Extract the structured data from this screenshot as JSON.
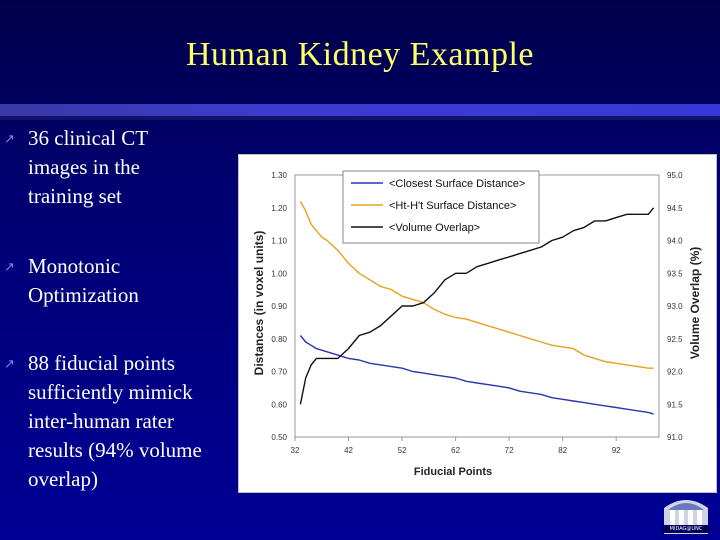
{
  "slide": {
    "title": "Human Kidney Example",
    "bullets": [
      {
        "lines": [
          "36 clinical CT",
          "images in the",
          "training set"
        ]
      },
      {
        "lines": [
          "Monotonic",
          "Optimization"
        ]
      },
      {
        "lines": [
          "88 fiducial points",
          "sufficiently mimick",
          "inter-human rater",
          "results (94% volume",
          "overlap)"
        ]
      }
    ],
    "bullet_icon": "zigzag-arrow-icon",
    "logo": {
      "name": "university-seal-logo",
      "caption": "MIDAG@UNC"
    }
  },
  "colors": {
    "background": "#00007a",
    "title": "#ffff66",
    "closest": "#2a35b0",
    "htht": "#e6a21e",
    "volume": "#111111"
  },
  "chart_data": {
    "type": "line",
    "xlabel": "Fiducial Points",
    "ylabel_left": "Distances (in voxel units)",
    "ylabel_right": "Volume Overlap (%)",
    "x_ticks": [
      32,
      42,
      52,
      62,
      72,
      82,
      92
    ],
    "y_left_ticks": [
      "0.50",
      "0.60",
      "0.70",
      "0.80",
      "0.90",
      "1.00",
      "1.10",
      "1.20",
      "1.30"
    ],
    "y_right_ticks": [
      "91.0",
      "91.5",
      "92.0",
      "92.5",
      "93.0",
      "93.5",
      "94.0",
      "94.5",
      "95.0"
    ],
    "xlim": [
      32,
      100
    ],
    "ylim_left": [
      0.5,
      1.3
    ],
    "ylim_right": [
      91.0,
      95.0
    ],
    "legend_position": "top-center",
    "series": [
      {
        "name": "<Closest Surface Distance>",
        "axis": "left",
        "color": "#2a35b0",
        "x": [
          33,
          34,
          35,
          36,
          38,
          40,
          42,
          44,
          46,
          48,
          50,
          52,
          54,
          56,
          58,
          60,
          62,
          64,
          66,
          68,
          70,
          72,
          74,
          76,
          78,
          80,
          82,
          84,
          86,
          88,
          90,
          92,
          94,
          96,
          98,
          99
        ],
        "y": [
          0.81,
          0.79,
          0.78,
          0.77,
          0.76,
          0.75,
          0.74,
          0.735,
          0.725,
          0.72,
          0.715,
          0.71,
          0.7,
          0.695,
          0.69,
          0.685,
          0.68,
          0.67,
          0.665,
          0.66,
          0.655,
          0.65,
          0.64,
          0.635,
          0.63,
          0.62,
          0.615,
          0.61,
          0.605,
          0.6,
          0.595,
          0.59,
          0.585,
          0.58,
          0.575,
          0.57
        ]
      },
      {
        "name": "<Ht-H't Surface Distance>",
        "axis": "left",
        "color": "#e6a21e",
        "x": [
          33,
          34,
          35,
          36,
          37,
          38,
          40,
          42,
          44,
          46,
          48,
          50,
          52,
          54,
          56,
          58,
          60,
          62,
          64,
          66,
          68,
          70,
          72,
          74,
          76,
          78,
          80,
          82,
          84,
          86,
          88,
          90,
          92,
          94,
          96,
          98,
          99
        ],
        "y": [
          1.22,
          1.19,
          1.15,
          1.13,
          1.11,
          1.1,
          1.07,
          1.03,
          1.0,
          0.98,
          0.96,
          0.95,
          0.93,
          0.92,
          0.91,
          0.89,
          0.875,
          0.865,
          0.86,
          0.85,
          0.84,
          0.83,
          0.82,
          0.81,
          0.8,
          0.79,
          0.78,
          0.775,
          0.77,
          0.75,
          0.74,
          0.73,
          0.725,
          0.72,
          0.715,
          0.71,
          0.71
        ]
      },
      {
        "name": "<Volume Overlap>",
        "axis": "right",
        "color": "#111111",
        "x": [
          33,
          34,
          35,
          36,
          38,
          40,
          42,
          43,
          44,
          46,
          48,
          50,
          52,
          54,
          56,
          58,
          60,
          62,
          64,
          66,
          68,
          70,
          72,
          74,
          76,
          78,
          80,
          82,
          84,
          86,
          88,
          90,
          92,
          94,
          96,
          98,
          99
        ],
        "y": [
          91.5,
          91.9,
          92.1,
          92.2,
          92.2,
          92.2,
          92.35,
          92.45,
          92.55,
          92.6,
          92.7,
          92.85,
          93.0,
          93.0,
          93.05,
          93.2,
          93.4,
          93.5,
          93.5,
          93.6,
          93.65,
          93.7,
          93.75,
          93.8,
          93.85,
          93.9,
          94.0,
          94.05,
          94.15,
          94.2,
          94.3,
          94.3,
          94.35,
          94.4,
          94.4,
          94.4,
          94.5
        ]
      }
    ]
  }
}
